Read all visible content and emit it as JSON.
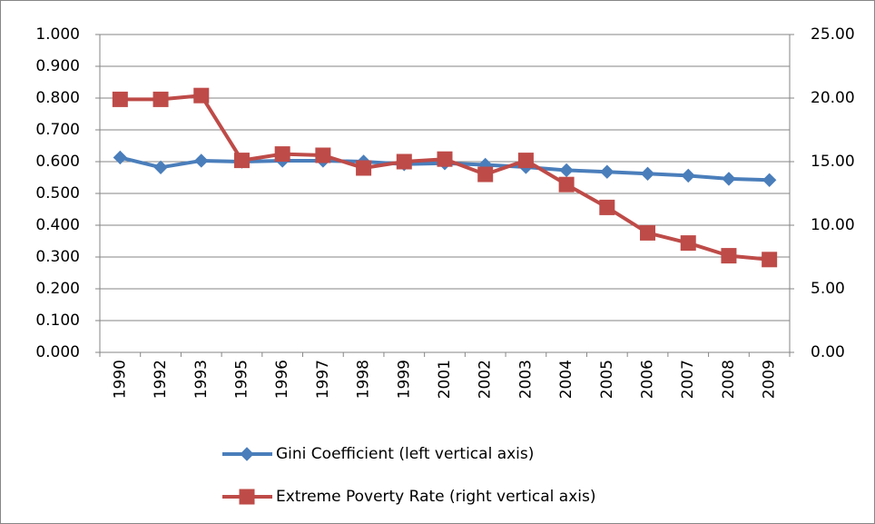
{
  "chart_data": {
    "type": "line",
    "categories": [
      "1990",
      "1992",
      "1993",
      "1995",
      "1996",
      "1997",
      "1998",
      "1999",
      "2001",
      "2002",
      "2003",
      "2004",
      "2005",
      "2006",
      "2007",
      "2008",
      "2009"
    ],
    "series": [
      {
        "name": "Gini Coefficient (left vertical axis)",
        "color": "#4a7ebb",
        "marker": "diamond",
        "values": [
          0.613,
          0.582,
          0.603,
          0.6,
          0.603,
          0.603,
          0.6,
          0.592,
          0.595,
          0.59,
          0.583,
          0.573,
          0.568,
          0.562,
          0.556,
          0.546,
          0.542
        ]
      },
      {
        "name": "Extreme Poverty Rate (right vertical axis)",
        "color": "#be4b48",
        "marker": "square",
        "axis": "y2",
        "values": [
          19.9,
          19.9,
          20.2,
          15.1,
          15.6,
          15.5,
          14.5,
          15.0,
          15.2,
          14.0,
          15.1,
          13.2,
          11.4,
          9.4,
          8.6,
          7.6,
          7.3
        ]
      }
    ],
    "ylim": [
      0,
      1
    ],
    "yticks": [
      {
        "value": 0,
        "label": "0.000"
      },
      {
        "value": 0.1,
        "label": "0.100"
      },
      {
        "value": 0.2,
        "label": "0.200"
      },
      {
        "value": 0.3,
        "label": "0.300"
      },
      {
        "value": 0.4,
        "label": "0.400"
      },
      {
        "value": 0.5,
        "label": "0.500"
      },
      {
        "value": 0.6,
        "label": "0.600"
      },
      {
        "value": 0.7,
        "label": "0.700"
      },
      {
        "value": 0.8,
        "label": "0.800"
      },
      {
        "value": 0.9,
        "label": "0.900"
      },
      {
        "value": 1,
        "label": "1.000"
      }
    ],
    "y2lim": [
      0,
      25
    ],
    "y2ticks": [
      {
        "value": 0,
        "label": "0.00"
      },
      {
        "value": 5,
        "label": "5.00"
      },
      {
        "value": 10,
        "label": "10.00"
      },
      {
        "value": 15,
        "label": "15.00"
      },
      {
        "value": 20,
        "label": "20.00"
      },
      {
        "value": 25,
        "label": "25.00"
      }
    ],
    "grid": true,
    "legend": "bottom"
  }
}
